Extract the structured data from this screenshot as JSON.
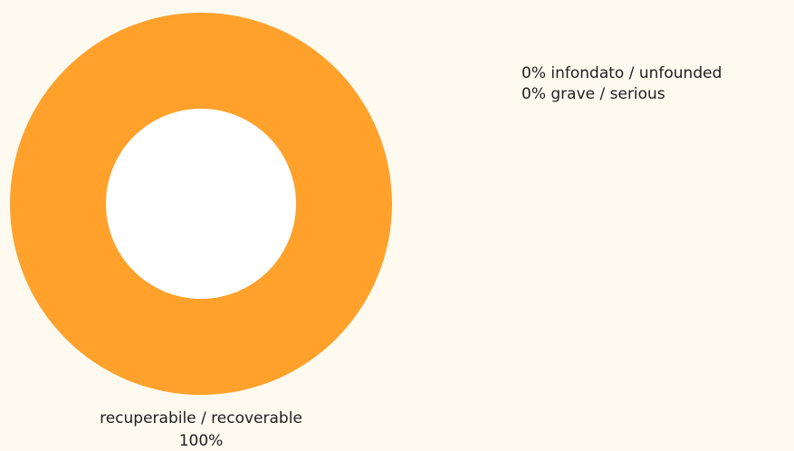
{
  "colors": {
    "background": "#fefaf0",
    "slice": "#ffa12b",
    "hole": "#ffffff",
    "text": "#1e1e1e"
  },
  "chart_data": {
    "type": "pie",
    "donut": true,
    "categories": [
      "recuperabile / recoverable",
      "infondato / unfounded",
      "grave / serious"
    ],
    "values": [
      100,
      0,
      0
    ],
    "unit": "%",
    "slice_label": {
      "name": "recuperabile / recoverable",
      "value": "100%"
    },
    "zero_value_labels": [
      "0% infondato / unfounded",
      "0% grave / serious"
    ]
  }
}
